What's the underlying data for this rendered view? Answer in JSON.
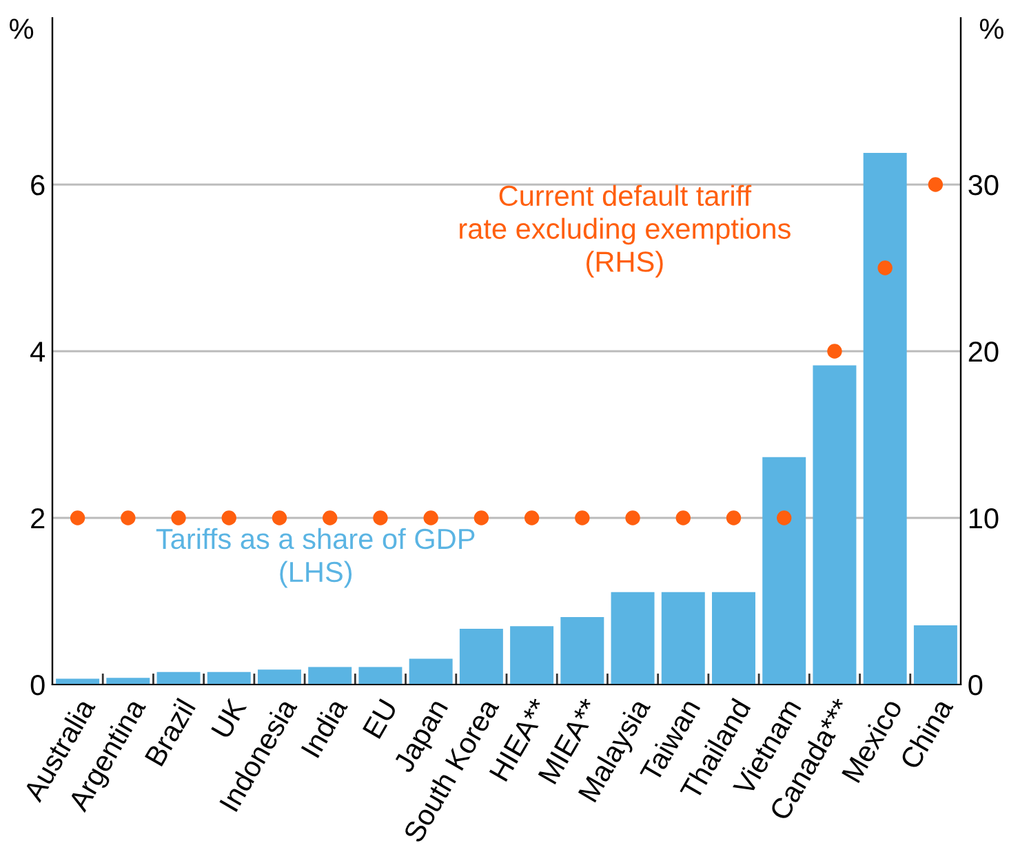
{
  "chart_data": {
    "type": "bar",
    "categories": [
      "Australia",
      "Argentina",
      "Brazil",
      "UK",
      "Indonesia",
      "India",
      "EU",
      "Japan",
      "South Korea",
      "HIEA**",
      "MIEA**",
      "Malaysia",
      "Taiwan",
      "Thailand",
      "Vietnam",
      "Canada***",
      "Mexico",
      "China"
    ],
    "series": [
      {
        "color": "#5ab4e3",
        "values": [
          0.07,
          0.08,
          0.15,
          0.15,
          0.18,
          0.21,
          0.21,
          0.31,
          0.67,
          0.7,
          0.81,
          1.11,
          1.11,
          1.11,
          2.73,
          3.83,
          6.38,
          0.71
        ]
      },
      {
        "type": "scatter",
        "axis": "y2",
        "color": "#ff5f0f",
        "values": [
          10,
          10,
          10,
          10,
          10,
          10,
          10,
          10,
          10,
          10,
          10,
          10,
          10,
          10,
          10,
          20,
          25,
          30
        ]
      }
    ],
    "ylabel": "%",
    "y2label": "%",
    "ylim": [
      0,
      8
    ],
    "yticks": [
      0,
      2,
      4,
      6
    ],
    "y2lim": [
      0,
      40
    ],
    "y2ticks": [
      0,
      10,
      20,
      30
    ],
    "grid": "y",
    "marker": "circle",
    "legend": false,
    "annotations": [
      "Tariffs as a share of GDP\n(LHS)",
      "Current default tariff\nrate excluding exemptions\n(RHS)"
    ]
  }
}
